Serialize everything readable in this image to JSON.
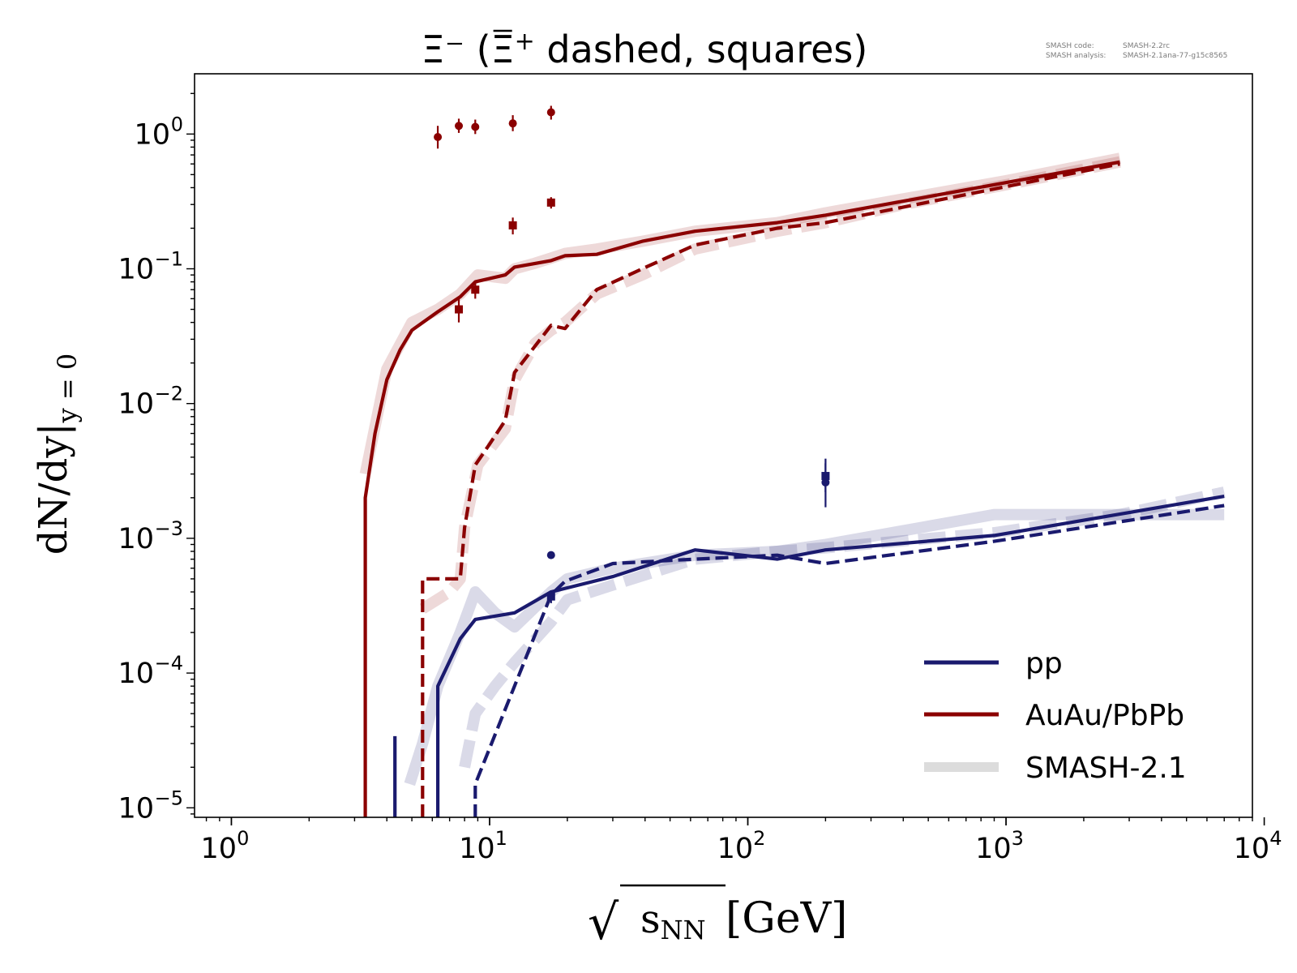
{
  "chart_data": {
    "type": "line",
    "title": {
      "main": "Ξ⁻ (",
      "bar_symbol": "Ξ",
      "bar_sup": "+",
      "rest": " dashed, squares)"
    },
    "xlabel": {
      "sqrt": "√",
      "sub": "s",
      "subsub": "NN",
      "unit": " [GeV]"
    },
    "ylabel": {
      "main": "dN/dy|",
      "sub": "y = 0"
    },
    "x_scale": "log",
    "y_scale": "log",
    "xlim": [
      0.72,
      9000
    ],
    "ylim": [
      8.5e-06,
      2.8
    ],
    "x_ticks": [
      {
        "value": 1,
        "base": "10",
        "exp": "0"
      },
      {
        "value": 10,
        "base": "10",
        "exp": "1"
      },
      {
        "value": 100,
        "base": "10",
        "exp": "2"
      },
      {
        "value": 1000,
        "base": "10",
        "exp": "3"
      },
      {
        "value": 10000,
        "base": "10",
        "exp": "4"
      }
    ],
    "y_ticks": [
      {
        "value": 1,
        "base": "10",
        "exp": "0"
      },
      {
        "value": 0.1,
        "base": "10",
        "exp": "−1"
      },
      {
        "value": 0.01,
        "base": "10",
        "exp": "−2"
      },
      {
        "value": 0.001,
        "base": "10",
        "exp": "−3"
      },
      {
        "value": 0.0001,
        "base": "10",
        "exp": "−4"
      },
      {
        "value": 1e-05,
        "base": "10",
        "exp": "−5"
      }
    ],
    "grid": false,
    "legend_position": "bottom-right",
    "legend": [
      {
        "label": "pp",
        "color": "#1a1a6e",
        "style": "solid"
      },
      {
        "label": "AuAu/PbPb",
        "color": "#8b0000",
        "style": "solid"
      },
      {
        "label": "SMASH-2.1",
        "color": "#dcdcdc",
        "style": "band"
      }
    ],
    "series": [
      {
        "id": "heavy_xi_minus_ref",
        "color": "#8b0000",
        "style": "band",
        "x": [
          3.3,
          4.0,
          5.0,
          6.3,
          7.7,
          9.0,
          11.5,
          12.5,
          15.0,
          17.3,
          19.6,
          26.0,
          39.0,
          62.4,
          130,
          200,
          400,
          1000,
          2760
        ],
        "y": [
          0.003,
          0.018,
          0.04,
          0.05,
          0.065,
          0.09,
          0.085,
          0.1,
          0.11,
          0.12,
          0.13,
          0.14,
          0.16,
          0.19,
          0.22,
          0.26,
          0.33,
          0.45,
          0.66
        ]
      },
      {
        "id": "heavy_xi_plus_ref",
        "color": "#8b0000",
        "style": "band",
        "x": [
          5.5,
          7.0,
          7.7,
          8.0,
          9.0,
          11.5,
          12.5,
          15.0,
          17.3,
          19.6,
          26.0,
          39.0,
          62.4,
          130,
          200,
          400,
          1000,
          2760
        ],
        "y": [
          0.0003,
          0.0004,
          0.0005,
          0.0012,
          0.0035,
          0.0065,
          0.015,
          0.028,
          0.035,
          0.04,
          0.065,
          0.09,
          0.14,
          0.19,
          0.22,
          0.3,
          0.42,
          0.62
        ]
      },
      {
        "id": "pp_xi_minus_ref",
        "color": "#1a1a6e",
        "style": "band",
        "x": [
          4.9,
          5.5,
          6.3,
          7.7,
          8.8,
          10.5,
          12.5,
          17.3,
          20.0,
          30.0,
          62.4,
          130,
          200,
          900,
          2760,
          7000
        ],
        "y": [
          1.5e-05,
          3e-05,
          8e-05,
          0.0002,
          0.0004,
          0.00028,
          0.00022,
          0.0004,
          0.0005,
          0.0006,
          0.00075,
          0.0008,
          0.0009,
          0.0015,
          0.0015,
          0.0015
        ]
      },
      {
        "id": "pp_xi_plus_ref",
        "color": "#1a1a6e",
        "style": "band",
        "x": [
          8.0,
          8.8,
          10.5,
          12.5,
          17.3,
          20.0,
          30.0,
          62.4,
          130,
          200,
          900,
          2760,
          7000
        ],
        "y": [
          2e-05,
          5e-05,
          8e-05,
          0.00012,
          0.00024,
          0.00035,
          0.00045,
          0.0007,
          0.0008,
          0.00085,
          0.0011,
          0.0015,
          0.0022
        ]
      },
      {
        "id": "heavy_xi_minus",
        "color": "#8b0000",
        "style": "solid",
        "x": [
          3.3,
          3.3,
          3.6,
          4.0,
          4.5,
          5.0,
          6.3,
          7.7,
          8.8,
          11.5,
          12.5,
          17.3,
          19.6,
          26.0,
          39.0,
          62.4,
          130,
          200,
          2760
        ],
        "y": [
          8.5e-06,
          0.002,
          0.006,
          0.015,
          0.025,
          0.035,
          0.048,
          0.062,
          0.08,
          0.09,
          0.103,
          0.115,
          0.125,
          0.128,
          0.16,
          0.19,
          0.22,
          0.25,
          0.62
        ]
      },
      {
        "id": "heavy_xi_plus",
        "color": "#8b0000",
        "style": "dashed",
        "x": [
          5.5,
          5.5,
          7.7,
          8.0,
          8.8,
          10.0,
          11.5,
          12.5,
          17.3,
          19.6,
          26.0,
          39.0,
          62.4,
          130,
          200,
          2760
        ],
        "y": [
          8.5e-06,
          0.0005,
          0.0005,
          0.0012,
          0.0035,
          0.005,
          0.0075,
          0.017,
          0.038,
          0.036,
          0.07,
          0.1,
          0.15,
          0.2,
          0.22,
          0.6
        ]
      },
      {
        "id": "pp_xi_minus",
        "color": "#1a1a6e",
        "style": "solid",
        "x": [
          6.3,
          6.3,
          7.7,
          8.8,
          12.5,
          17.3,
          30.0,
          62.4,
          130,
          200,
          900,
          7000
        ],
        "y": [
          8.5e-06,
          8e-05,
          0.00018,
          0.00025,
          0.00028,
          0.0004,
          0.00052,
          0.00082,
          0.0007,
          0.00082,
          0.00105,
          0.00205
        ]
      },
      {
        "id": "pp_xi_plus",
        "color": "#1a1a6e",
        "style": "dashed",
        "x": [
          8.8,
          8.8,
          17.3,
          19.6,
          30.0,
          62.4,
          130,
          200,
          900,
          7000
        ],
        "y": [
          8.5e-06,
          1.5e-05,
          0.00038,
          0.00048,
          0.00065,
          0.0007,
          0.00075,
          0.00065,
          0.00095,
          0.00175
        ]
      },
      {
        "id": "pp_vertical_tick",
        "color": "#1a1a6e",
        "style": "solid",
        "x": [
          4.3,
          4.3
        ],
        "y": [
          8.5e-06,
          3.4e-05
        ]
      }
    ],
    "data_points": [
      {
        "marker": "circle",
        "color": "#8b0000",
        "x": 6.3,
        "y": 0.95,
        "err_lo": 0.78,
        "err_hi": 1.15
      },
      {
        "marker": "circle",
        "color": "#8b0000",
        "x": 7.6,
        "y": 1.15,
        "err_lo": 1.02,
        "err_hi": 1.3
      },
      {
        "marker": "circle",
        "color": "#8b0000",
        "x": 8.8,
        "y": 1.13,
        "err_lo": 1.0,
        "err_hi": 1.28
      },
      {
        "marker": "circle",
        "color": "#8b0000",
        "x": 12.3,
        "y": 1.2,
        "err_lo": 1.05,
        "err_hi": 1.38
      },
      {
        "marker": "circle",
        "color": "#8b0000",
        "x": 17.3,
        "y": 1.45,
        "err_lo": 1.28,
        "err_hi": 1.62
      },
      {
        "marker": "square",
        "color": "#8b0000",
        "x": 7.6,
        "y": 0.05,
        "err_lo": 0.04,
        "err_hi": 0.062
      },
      {
        "marker": "square",
        "color": "#8b0000",
        "x": 8.8,
        "y": 0.07,
        "err_lo": 0.06,
        "err_hi": 0.08
      },
      {
        "marker": "square",
        "color": "#8b0000",
        "x": 12.3,
        "y": 0.21,
        "err_lo": 0.18,
        "err_hi": 0.24
      },
      {
        "marker": "square",
        "color": "#8b0000",
        "x": 17.3,
        "y": 0.31,
        "err_lo": 0.28,
        "err_hi": 0.34
      },
      {
        "marker": "circle",
        "color": "#1a1a6e",
        "x": 17.3,
        "y": 0.00075,
        "err_lo": 0.00072,
        "err_hi": 0.00078
      },
      {
        "marker": "square",
        "color": "#1a1a6e",
        "x": 17.3,
        "y": 0.00037,
        "err_lo": 0.00033,
        "err_hi": 0.00041
      },
      {
        "marker": "circle",
        "color": "#1a1a6e",
        "x": 200,
        "y": 0.0026,
        "err_lo": 0.0017,
        "err_hi": 0.0036
      },
      {
        "marker": "square",
        "color": "#1a1a6e",
        "x": 200,
        "y": 0.0029,
        "err_lo": 0.0022,
        "err_hi": 0.0039
      }
    ]
  },
  "version_stamp": {
    "line1_label": "SMASH code:",
    "line1_value": "SMASH-2.2rc",
    "line2_label": "SMASH analysis:",
    "line2_value": "SMASH-2.1ana-77-g15c8565"
  },
  "colors": {
    "heavy": "#8b0000",
    "pp": "#1a1a6e",
    "band": "#dcdcdc"
  }
}
